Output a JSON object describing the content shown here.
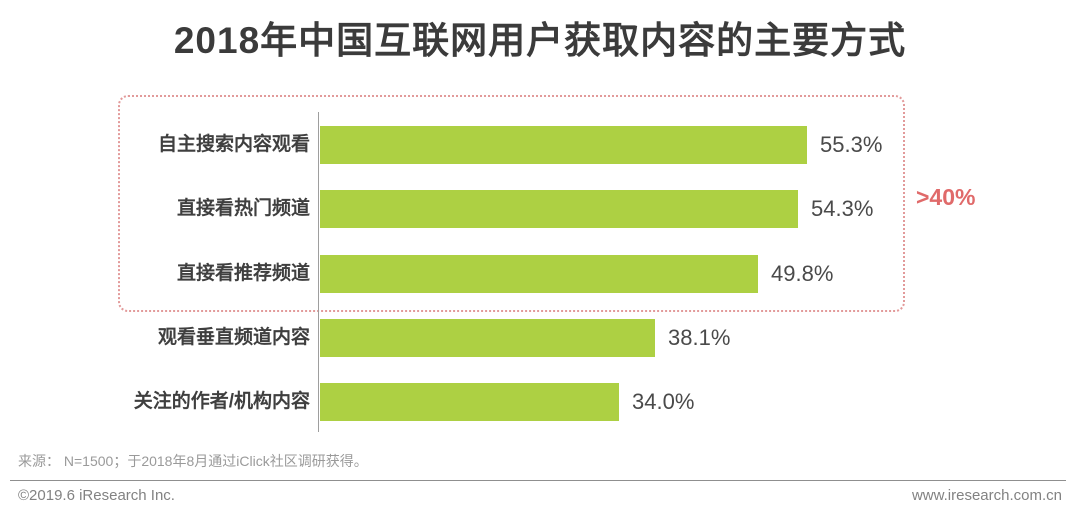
{
  "title": "2018年中国互联网用户获取内容的主要方式",
  "chart_data": {
    "type": "bar",
    "orientation": "horizontal",
    "title": "2018年中国互联网用户获取内容的主要方式",
    "categories": [
      "自主搜索内容观看",
      "直接看热门频道",
      "直接看推荐频道",
      "观看垂直频道内容",
      "关注的作者/机构内容"
    ],
    "values": [
      55.3,
      54.3,
      49.8,
      38.1,
      34.0
    ],
    "value_labels": [
      "55.3%",
      "54.3%",
      "49.8%",
      "38.1%",
      "34.0%"
    ],
    "xlim": [
      0,
      60
    ],
    "grid": "off",
    "legend": "none",
    "bar_color": "#add043",
    "annotation": {
      "label": ">40%",
      "color": "#e06a6a",
      "applies_to": "top 3 bars",
      "style": "red dotted rounded box around bars over 40%"
    }
  },
  "source_note": "来源： N=1500；于2018年8月通过iClick社区调研获得。",
  "footer": {
    "copyright": "©2019.6 iResearch Inc.",
    "website": "www.iresearch.com.cn"
  }
}
